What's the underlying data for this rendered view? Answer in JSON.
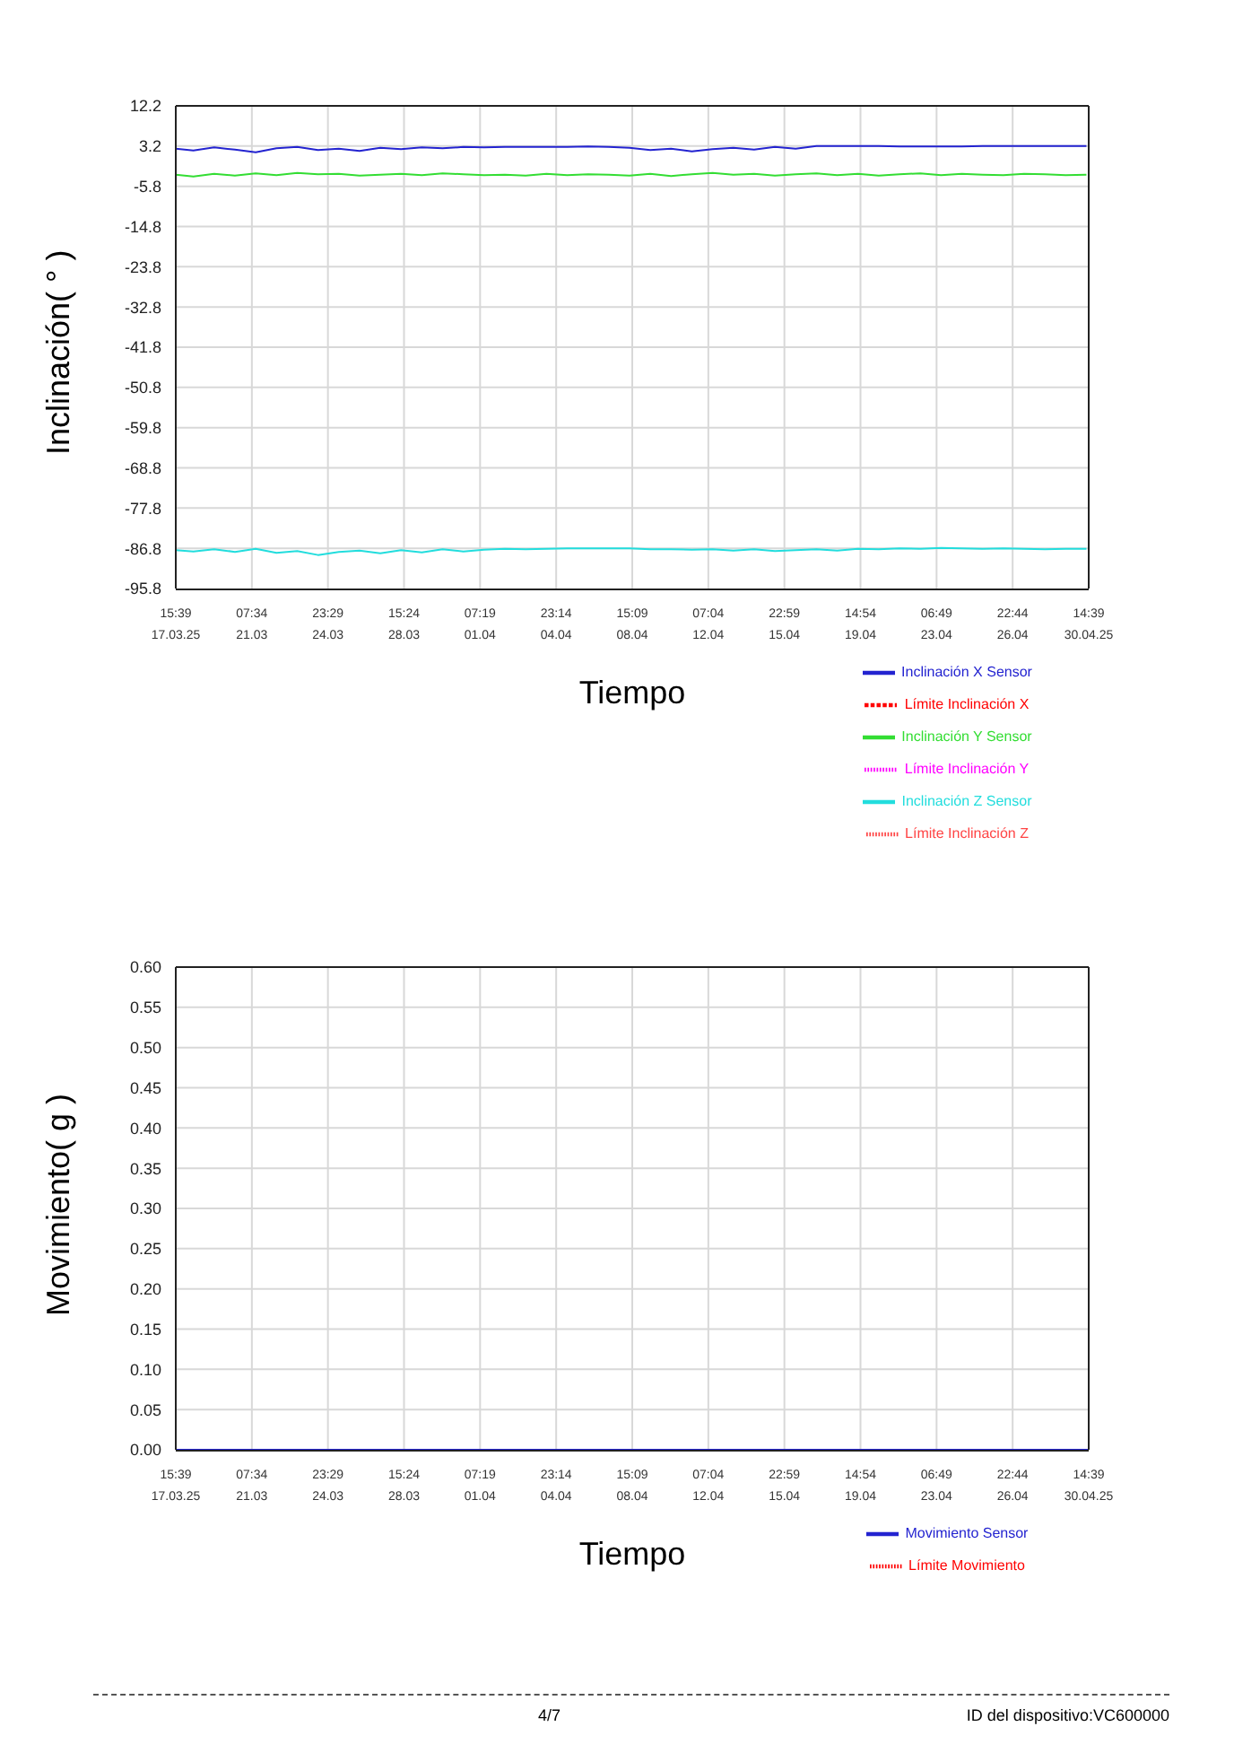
{
  "chart_data": [
    {
      "type": "line",
      "xlabel": "Tiempo",
      "ylabel": "Inclinación( ° )",
      "ylim": [
        -95.8,
        12.2
      ],
      "yticks": [
        12.2,
        3.2,
        -5.8,
        -14.8,
        -23.8,
        -32.8,
        -41.8,
        -50.8,
        -59.8,
        -68.8,
        -77.8,
        -86.8,
        -95.8
      ],
      "xlim": [
        "--03-17T15:39",
        "--04-30T14:39"
      ],
      "xticks": [
        {
          "value": "--03-17T15:39",
          "label": "15:39\n17.03.25"
        },
        {
          "value": "--03-21T07:34",
          "label": "07:34\n21.03"
        },
        {
          "value": "--03-24T23:29",
          "label": "23:29\n24.03"
        },
        {
          "value": "--03-28T15:24",
          "label": "15:24\n28.03"
        },
        {
          "value": "--04-01T07:19",
          "label": "07:19\n01.04"
        },
        {
          "value": "--04-04T23:14",
          "label": "23:14\n04.04"
        },
        {
          "value": "--04-08T15:09",
          "label": "15:09\n08.04"
        },
        {
          "value": "--04-12T07:04",
          "label": "07:04\n12.04"
        },
        {
          "value": "--04-15T22:59",
          "label": "22:59\n15.04"
        },
        {
          "value": "--04-19T14:54",
          "label": "14:54\n19.04"
        },
        {
          "value": "--04-23T06:49",
          "label": "06:49\n23.04"
        },
        {
          "value": "--04-26T22:44",
          "label": "22:44\n26.04"
        },
        {
          "value": "--04-30T14:39",
          "label": "14:39\n30.04.25"
        }
      ],
      "x": [
        "--03-17T15:39",
        "--03-18T12:00",
        "--03-19T12:00",
        "--03-20T12:00",
        "--03-21T12:00",
        "--03-22T12:00",
        "--03-23T12:00",
        "--03-24T12:00",
        "--03-25T12:00",
        "--03-26T12:00",
        "--03-27T12:00",
        "--03-28T12:00",
        "--03-29T12:00",
        "--03-30T12:00",
        "--03-31T12:00",
        "--04-01T12:00",
        "--04-02T12:00",
        "--04-03T12:00",
        "--04-04T12:00",
        "--04-05T12:00",
        "--04-06T12:00",
        "--04-07T12:00",
        "--04-08T12:00",
        "--04-09T12:00",
        "--04-10T12:00",
        "--04-11T12:00",
        "--04-12T12:00",
        "--04-13T12:00",
        "--04-14T12:00",
        "--04-15T12:00",
        "--04-16T12:00",
        "--04-17T12:00",
        "--04-18T12:00",
        "--04-19T12:00",
        "--04-20T12:00",
        "--04-21T12:00",
        "--04-22T12:00",
        "--04-23T12:00",
        "--04-24T12:00",
        "--04-25T12:00",
        "--04-26T12:00",
        "--04-27T12:00",
        "--04-28T12:00",
        "--04-29T12:00",
        "--04-30T12:00"
      ],
      "series": [
        {
          "name": "Inclinación X Sensor",
          "color": "#2323d0",
          "values": [
            2.6,
            2.2,
            2.9,
            2.4,
            1.8,
            2.7,
            3.0,
            2.3,
            2.6,
            2.1,
            2.8,
            2.5,
            2.9,
            2.7,
            3.0,
            2.9,
            3.0,
            3.0,
            3.0,
            3.0,
            3.1,
            3.0,
            2.8,
            2.3,
            2.6,
            2.0,
            2.5,
            2.8,
            2.4,
            3.0,
            2.6,
            3.2,
            3.2,
            3.2,
            3.2,
            3.1,
            3.1,
            3.1,
            3.1,
            3.2,
            3.2,
            3.2,
            3.2,
            3.2,
            3.2
          ]
        },
        {
          "name": "Límite Inclinación X",
          "color": "#ff0000",
          "line_style": "dashed",
          "values": [
            null,
            null,
            null,
            null,
            null,
            null,
            null,
            null,
            null,
            null,
            null,
            null,
            null,
            null,
            null,
            null,
            null,
            null,
            null,
            null,
            null,
            null,
            null,
            null,
            null,
            null,
            null,
            null,
            null,
            null,
            null,
            null,
            null,
            null,
            null,
            null,
            null,
            null,
            null,
            null,
            null,
            null,
            null,
            null,
            null
          ]
        },
        {
          "name": "Inclinación Y Sensor",
          "color": "#33dd33",
          "values": [
            -3.2,
            -3.6,
            -3.0,
            -3.4,
            -2.9,
            -3.3,
            -2.8,
            -3.1,
            -3.0,
            -3.4,
            -3.2,
            -3.0,
            -3.3,
            -2.9,
            -3.1,
            -3.3,
            -3.2,
            -3.4,
            -3.0,
            -3.3,
            -3.1,
            -3.2,
            -3.4,
            -3.0,
            -3.5,
            -3.1,
            -2.8,
            -3.2,
            -3.0,
            -3.4,
            -3.1,
            -2.9,
            -3.3,
            -3.0,
            -3.4,
            -3.1,
            -2.9,
            -3.3,
            -3.0,
            -3.2,
            -3.3,
            -3.0,
            -3.1,
            -3.3,
            -3.2
          ]
        },
        {
          "name": "Límite Inclinación Y",
          "color": "#ff00ff",
          "line_style": "dotted",
          "values": [
            null,
            null,
            null,
            null,
            null,
            null,
            null,
            null,
            null,
            null,
            null,
            null,
            null,
            null,
            null,
            null,
            null,
            null,
            null,
            null,
            null,
            null,
            null,
            null,
            null,
            null,
            null,
            null,
            null,
            null,
            null,
            null,
            null,
            null,
            null,
            null,
            null,
            null,
            null,
            null,
            null,
            null,
            null,
            null,
            null
          ]
        },
        {
          "name": "Inclinación Z Sensor",
          "color": "#22dddd",
          "values": [
            -87.2,
            -87.5,
            -87.0,
            -87.6,
            -86.9,
            -87.8,
            -87.4,
            -88.3,
            -87.6,
            -87.3,
            -87.9,
            -87.2,
            -87.7,
            -87.0,
            -87.5,
            -87.1,
            -86.9,
            -87.0,
            -86.9,
            -86.8,
            -86.8,
            -86.8,
            -86.8,
            -87.0,
            -87.0,
            -87.1,
            -87.0,
            -87.3,
            -87.0,
            -87.4,
            -87.2,
            -87.0,
            -87.3,
            -86.9,
            -87.0,
            -86.8,
            -86.9,
            -86.7,
            -86.8,
            -86.9,
            -86.8,
            -86.9,
            -87.0,
            -86.9,
            -86.9
          ]
        },
        {
          "name": "Límite Inclinación Z",
          "color": "#ff4444",
          "line_style": "dotted",
          "values": [
            null,
            null,
            null,
            null,
            null,
            null,
            null,
            null,
            null,
            null,
            null,
            null,
            null,
            null,
            null,
            null,
            null,
            null,
            null,
            null,
            null,
            null,
            null,
            null,
            null,
            null,
            null,
            null,
            null,
            null,
            null,
            null,
            null,
            null,
            null,
            null,
            null,
            null,
            null,
            null,
            null,
            null,
            null,
            null,
            null
          ]
        }
      ],
      "grid": true,
      "legend": "bottom right"
    },
    {
      "type": "line",
      "xlabel": "Tiempo",
      "ylabel": "Movimiento( g )",
      "ylim": [
        0,
        0.6
      ],
      "yticks": [
        {
          "value": 0,
          "label": "0.00"
        },
        {
          "value": 0.05,
          "label": "0.05"
        },
        {
          "value": 0.1,
          "label": "0.10"
        },
        {
          "value": 0.15,
          "label": "0.15"
        },
        {
          "value": 0.2,
          "label": "0.20"
        },
        {
          "value": 0.25,
          "label": "0.25"
        },
        {
          "value": 0.3,
          "label": "0.30"
        },
        {
          "value": 0.35,
          "label": "0.35"
        },
        {
          "value": 0.4,
          "label": "0.40"
        },
        {
          "value": 0.45,
          "label": "0.45"
        },
        {
          "value": 0.5,
          "label": "0.50"
        },
        {
          "value": 0.55,
          "label": "0.55"
        },
        {
          "value": 0.6,
          "label": "0.60"
        }
      ],
      "xlim": [
        "--03-17T15:39",
        "--04-30T14:39"
      ],
      "xticks": [
        {
          "value": "--03-17T15:39",
          "label": "15:39\n17.03.25"
        },
        {
          "value": "--03-21T07:34",
          "label": "07:34\n21.03"
        },
        {
          "value": "--03-24T23:29",
          "label": "23:29\n24.03"
        },
        {
          "value": "--03-28T15:24",
          "label": "15:24\n28.03"
        },
        {
          "value": "--04-01T07:19",
          "label": "07:19\n01.04"
        },
        {
          "value": "--04-04T23:14",
          "label": "23:14\n04.04"
        },
        {
          "value": "--04-08T15:09",
          "label": "15:09\n08.04"
        },
        {
          "value": "--04-12T07:04",
          "label": "07:04\n12.04"
        },
        {
          "value": "--04-15T22:59",
          "label": "22:59\n15.04"
        },
        {
          "value": "--04-19T14:54",
          "label": "14:54\n19.04"
        },
        {
          "value": "--04-23T06:49",
          "label": "06:49\n23.04"
        },
        {
          "value": "--04-26T22:44",
          "label": "22:44\n26.04"
        },
        {
          "value": "--04-30T14:39",
          "label": "14:39\n30.04.25"
        }
      ],
      "x": [
        "--03-17T15:39",
        "--04-30T14:39"
      ],
      "series": [
        {
          "name": "Movimiento Sensor",
          "color": "#2323d0",
          "values": [
            0,
            0
          ]
        },
        {
          "name": "Límite Movimiento",
          "color": "#ff0000",
          "line_style": "dotted",
          "values": [
            null,
            null
          ]
        }
      ],
      "grid": true,
      "legend": "bottom right",
      "annotations": [
        "4/7",
        "ID del dispositivo:VC600000"
      ]
    }
  ]
}
